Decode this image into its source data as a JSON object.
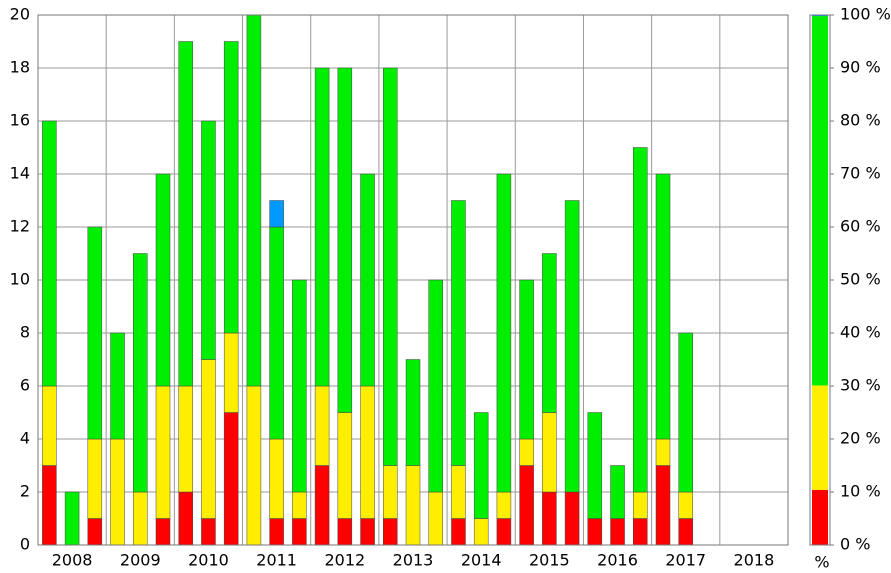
{
  "chart_data": {
    "type": "stacked_bar",
    "categories": [
      null,
      "2008",
      null,
      null,
      "2009",
      null,
      null,
      "2010",
      null,
      null,
      "2011",
      null,
      null,
      "2012",
      null,
      null,
      "2013",
      null,
      null,
      "2014",
      null,
      null,
      "2015",
      null,
      null,
      "2016",
      null,
      null,
      "2017",
      null,
      null,
      "2018",
      null
    ],
    "series": [
      {
        "name": "red",
        "color": "#ff0000",
        "values": [
          3,
          0,
          1,
          0,
          0,
          1,
          2,
          1,
          5,
          0,
          1,
          1,
          3,
          1,
          1,
          1,
          0,
          0,
          1,
          0,
          1,
          3,
          2,
          2,
          1,
          1,
          1,
          3,
          1,
          0,
          0,
          0,
          0
        ]
      },
      {
        "name": "yellow",
        "color": "#ffee00",
        "values": [
          3,
          0,
          3,
          4,
          2,
          5,
          4,
          6,
          3,
          6,
          3,
          1,
          3,
          4,
          5,
          2,
          3,
          2,
          2,
          1,
          1,
          1,
          3,
          0,
          0,
          0,
          1,
          1,
          1,
          0,
          0,
          0,
          0
        ]
      },
      {
        "name": "green",
        "color": "#00ee00",
        "values": [
          10,
          2,
          8,
          4,
          9,
          8,
          13,
          9,
          11,
          14,
          8,
          8,
          12,
          13,
          8,
          15,
          4,
          8,
          10,
          4,
          12,
          6,
          6,
          11,
          4,
          2,
          13,
          10,
          6,
          0,
          0,
          0,
          0
        ]
      },
      {
        "name": "blue",
        "color": "#0099ff",
        "values": [
          0,
          0,
          0,
          0,
          0,
          0,
          0,
          0,
          0,
          0,
          1,
          0,
          0,
          0,
          0,
          0,
          0,
          0,
          0,
          0,
          0,
          0,
          0,
          0,
          0,
          0,
          0,
          0,
          0,
          0,
          0,
          0,
          0
        ]
      }
    ],
    "ylim": [
      0,
      20
    ],
    "yticks": [
      0,
      2,
      4,
      6,
      8,
      10,
      12,
      14,
      16,
      18,
      20
    ],
    "grid": true,
    "share": {
      "label": "%",
      "values": [
        10.4,
        19.7,
        69.7,
        0.3
      ]
    },
    "y2lim": [
      0,
      100
    ],
    "y2ticks": [
      {
        "value": 0,
        "label": "0 %"
      },
      {
        "value": 10,
        "label": "10 %"
      },
      {
        "value": 20,
        "label": "20 %"
      },
      {
        "value": 30,
        "label": "30 %"
      },
      {
        "value": 40,
        "label": "40 %"
      },
      {
        "value": 50,
        "label": "50 %"
      },
      {
        "value": 60,
        "label": "60 %"
      },
      {
        "value": 70,
        "label": "70 %"
      },
      {
        "value": 80,
        "label": "80 %"
      },
      {
        "value": 90,
        "label": "90 %"
      },
      {
        "value": 100,
        "label": "100 %"
      }
    ]
  }
}
